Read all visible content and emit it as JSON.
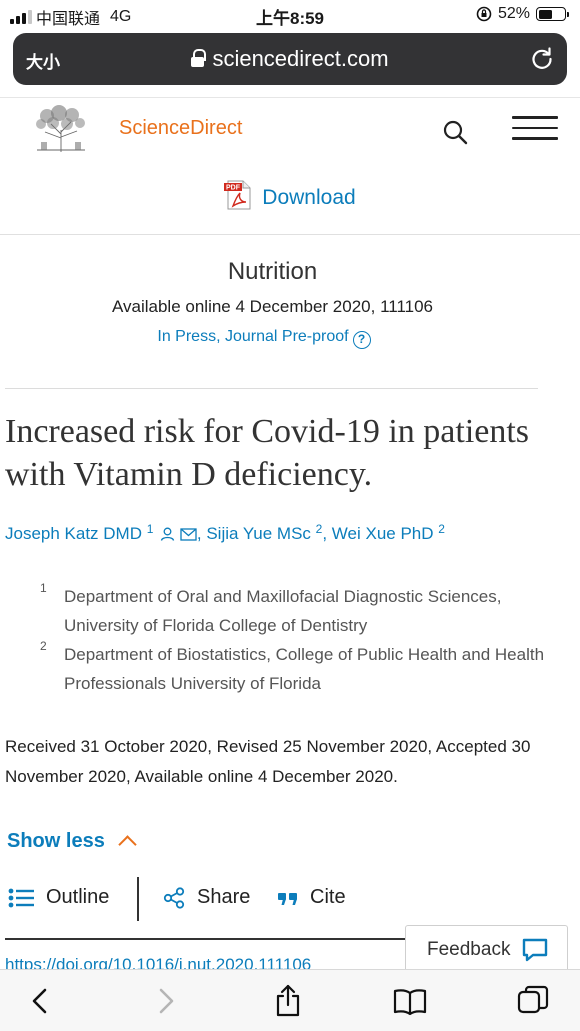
{
  "status_bar": {
    "carrier": "中国联通",
    "network": "4G",
    "time": "上午8:59",
    "battery_pct": "52%",
    "battery_level": 0.52
  },
  "browser": {
    "text_size_label": "大小",
    "url": "sciencedirect.com"
  },
  "header": {
    "brand": "ScienceDirect",
    "download_label": "Download",
    "pdf_badge": "PDF"
  },
  "journal": {
    "name": "Nutrition",
    "available_line": "Available online 4 December 2020, 111106",
    "status_link": "In Press, Journal Pre-proof",
    "help_glyph": "?"
  },
  "article": {
    "title": "Increased risk for Covid-19 in patients with Vitamin D deficiency.",
    "authors": [
      {
        "name": "Joseph Katz DMD",
        "sup": "1"
      },
      {
        "name": "Sijia Yue MSc",
        "sup": "2"
      },
      {
        "name": "Wei Xue PhD",
        "sup": "2"
      }
    ],
    "affiliations": [
      {
        "num": "1",
        "text": "Department of Oral and Maxillofacial Diagnostic Sciences, University of Florida College of Dentistry"
      },
      {
        "num": "2",
        "text": "Department of Biostatistics, College of Public Health and Health Professionals University of Florida"
      }
    ],
    "history": "Received 31 October 2020, Revised 25 November 2020, Accepted 30 November 2020, Available online 4 December 2020.",
    "show_less": "Show less",
    "doi": "https://doi.org/10.1016/j.nut.2020.111106"
  },
  "actions": {
    "outline": "Outline",
    "share": "Share",
    "cite": "Cite",
    "feedback": "Feedback"
  },
  "icons": {
    "accent": "#e9711c",
    "link": "#0c7dbb"
  }
}
